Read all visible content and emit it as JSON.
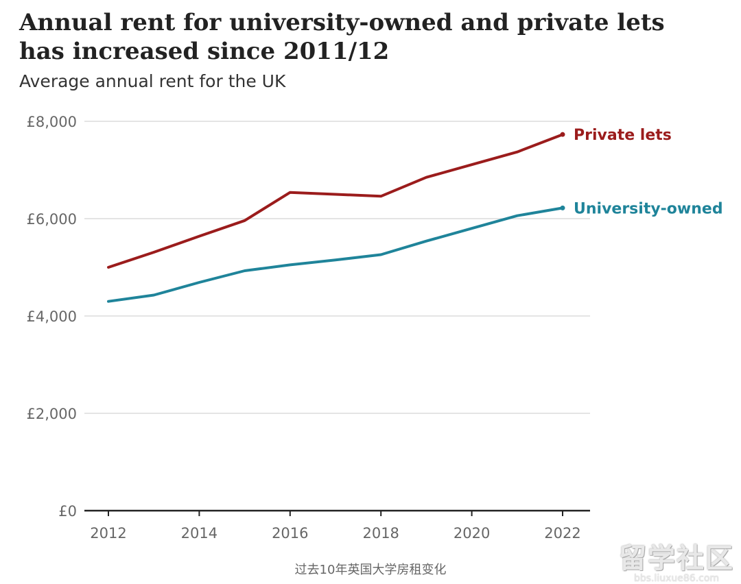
{
  "title": "Annual rent for university-owned and private lets has increased since 2011/12",
  "subtitle": "Average annual rent for the UK",
  "caption": "过去10年英国大学房租变化",
  "watermark": {
    "logo_text": "留学社区",
    "url_text": "bbs.liuxue86.com"
  },
  "chart_data": {
    "type": "line",
    "title": "Annual rent for university-owned and private lets has increased since 2011/12",
    "subtitle": "Average annual rent for the UK",
    "xlabel": "",
    "ylabel": "",
    "xlim": [
      2012,
      2022
    ],
    "ylim": [
      0,
      8000
    ],
    "x_ticks": [
      2012,
      2014,
      2016,
      2018,
      2020,
      2022
    ],
    "y_ticks": [
      0,
      2000,
      4000,
      6000,
      8000
    ],
    "y_tick_labels": [
      "£0",
      "£2,000",
      "£4,000",
      "£6,000",
      "£8,000"
    ],
    "grid": "horizontal",
    "legend": "direct labels at line ends",
    "x": [
      2012,
      2013,
      2014,
      2015,
      2016,
      2017,
      2018,
      2019,
      2020,
      2021,
      2022
    ],
    "series": [
      {
        "name": "Private lets",
        "color": "#9b1c1c",
        "values": [
          5000,
          5310,
          5640,
          5960,
          6540,
          6500,
          6460,
          6850,
          7110,
          7370,
          7730
        ]
      },
      {
        "name": "University-owned",
        "color": "#1f849a",
        "values": [
          4300,
          4430,
          4690,
          4930,
          5050,
          5150,
          5260,
          5540,
          5800,
          6060,
          6220
        ]
      }
    ]
  }
}
